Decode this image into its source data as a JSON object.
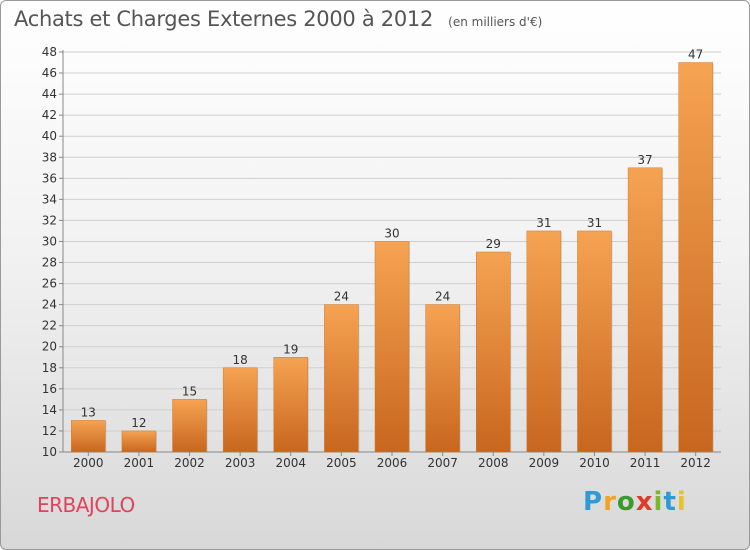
{
  "header": {
    "title": "Achats et Charges Externes 2000 à 2012",
    "unit": "(en milliers d'€)"
  },
  "footer": {
    "place": "ERBAJOLO",
    "logo_text": "Proxiti",
    "logo_colors": [
      "#2e9bd6",
      "#f2a325",
      "#3a9a2a",
      "#e03a2a",
      "#7ab82e",
      "#2e9bd6",
      "#e8c12e"
    ]
  },
  "colors": {
    "bar_top": "#f5a352",
    "bar_bottom": "#c8661e",
    "grid": "#cfcfcf",
    "axis_text": "#333333",
    "place": "#e2425c"
  },
  "chart_data": {
    "type": "bar",
    "categories": [
      "2000",
      "2001",
      "2002",
      "2003",
      "2004",
      "2005",
      "2006",
      "2007",
      "2008",
      "2009",
      "2010",
      "2011",
      "2012"
    ],
    "values": [
      13,
      12,
      15,
      18,
      19,
      24,
      30,
      24,
      29,
      31,
      31,
      37,
      47
    ],
    "ylim": [
      10,
      48
    ],
    "yticks": [
      10,
      12,
      14,
      16,
      18,
      20,
      22,
      24,
      26,
      28,
      30,
      32,
      34,
      36,
      38,
      40,
      42,
      44,
      46,
      48
    ],
    "grid": true
  }
}
